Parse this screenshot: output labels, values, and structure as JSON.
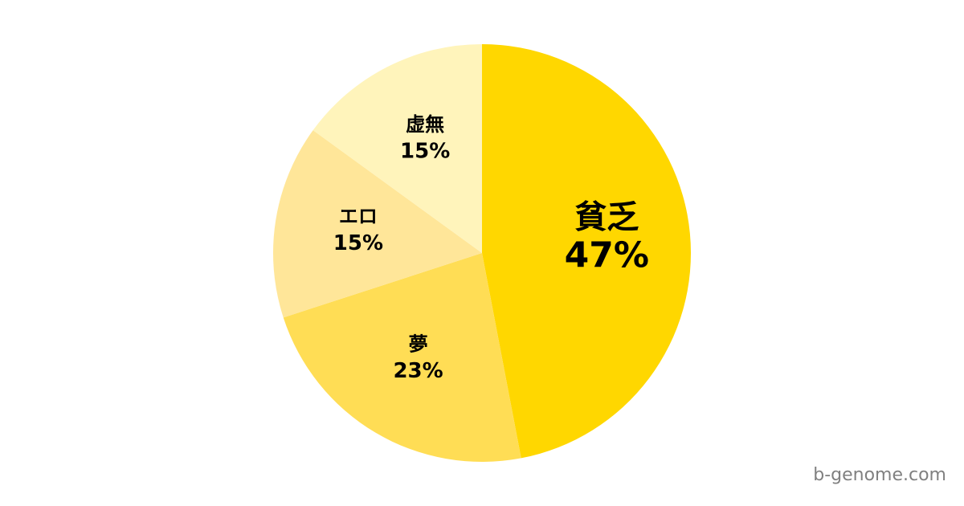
{
  "chart_data": {
    "type": "pie",
    "start": "top",
    "direction": "clockwise",
    "slices": [
      {
        "label": "貧乏",
        "value": 47,
        "value_label": "47%",
        "color": "#FFD700"
      },
      {
        "label": "夢",
        "value": 23,
        "value_label": "23%",
        "color": "#FFDD55"
      },
      {
        "label": "エロ",
        "value": 15,
        "value_label": "15%",
        "color": "#FFE699"
      },
      {
        "label": "虚無",
        "value": 15,
        "value_label": "15%",
        "color": "#FFF4BB"
      }
    ]
  },
  "watermark": "b-genome.com"
}
